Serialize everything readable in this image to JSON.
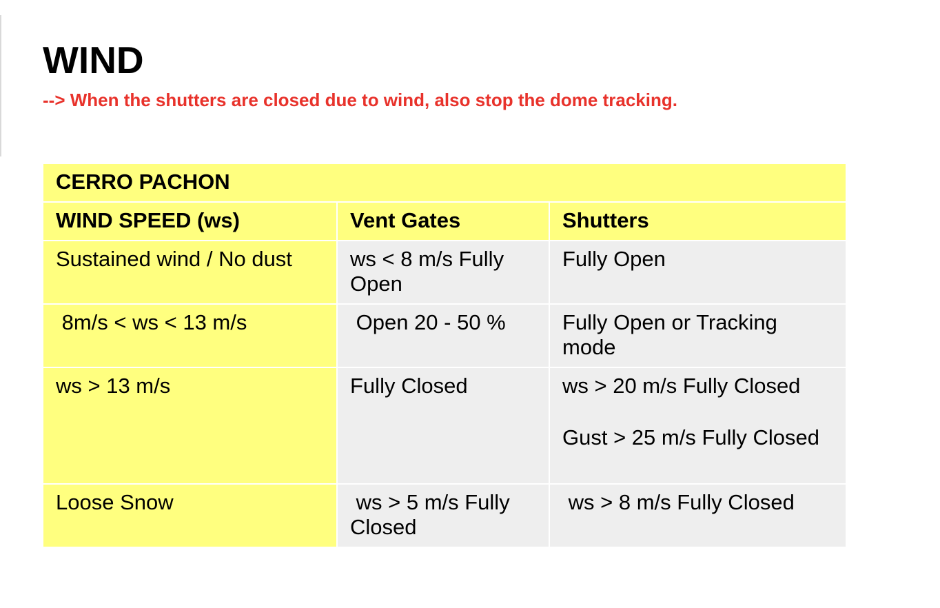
{
  "heading": {
    "title": "WIND",
    "note": "--> When the shutters are closed due to wind, also stop the dome tracking."
  },
  "table": {
    "site": "CERRO PACHON",
    "columns": [
      "WIND SPEED (ws)",
      "Vent Gates",
      "Shutters"
    ],
    "rows": [
      {
        "condition": "Sustained wind / No dust",
        "vent_gates": "ws < 8 m/s Fully Open",
        "shutters": [
          "Fully Open"
        ]
      },
      {
        "condition": " 8m/s < ws < 13 m/s",
        "vent_gates": " Open 20 - 50 %",
        "shutters": [
          "Fully Open or Tracking mode"
        ]
      },
      {
        "condition": "ws > 13 m/s",
        "vent_gates": "Fully Closed",
        "shutters": [
          "ws > 20 m/s Fully Closed",
          "Gust > 25 m/s Fully Closed"
        ]
      },
      {
        "condition": "Loose Snow",
        "vent_gates": " ws > 5 m/s Fully Closed",
        "shutters": [
          " ws > 8 m/s Fully Closed"
        ]
      }
    ]
  },
  "colors": {
    "header_yellow": "#ffff7f",
    "cell_grey": "#eeeeee",
    "note_red": "#e8322b"
  }
}
